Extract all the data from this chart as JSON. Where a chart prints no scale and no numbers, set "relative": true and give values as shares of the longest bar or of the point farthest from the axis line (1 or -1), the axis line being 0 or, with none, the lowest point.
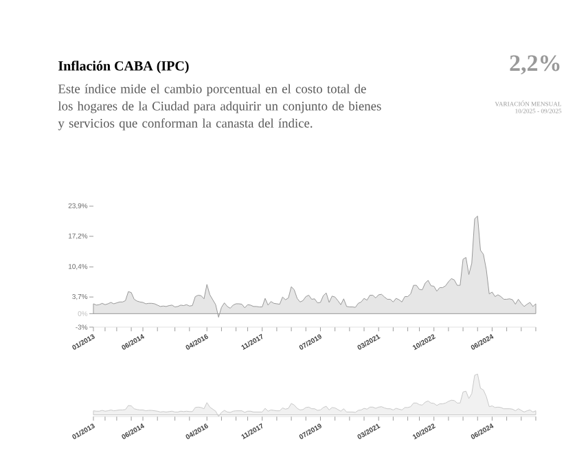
{
  "chart_data": [
    {
      "type": "area",
      "title": "Inflación CABA (IPC)",
      "subtitle": "Este índice mide el cambio porcentual en el costo total de los hogares de la Ciudad para adquirir un conjunto de bienes y servicios que conforman la canasta del índice.",
      "annotations": [
        "2,2%",
        "VARIACIÓN MENSUAL",
        "10/2025 - 09/2025"
      ],
      "color": "#999999",
      "x": [
        "2013-01",
        "2013-02",
        "2013-03",
        "2013-04",
        "2013-05",
        "2013-06",
        "2013-07",
        "2013-08",
        "2013-09",
        "2013-10",
        "2013-11",
        "2013-12",
        "2014-01",
        "2014-02",
        "2014-03",
        "2014-04",
        "2014-05",
        "2014-06",
        "2014-07",
        "2014-08",
        "2014-09",
        "2014-10",
        "2014-11",
        "2014-12",
        "2015-01",
        "2015-02",
        "2015-03",
        "2015-04",
        "2015-05",
        "2015-06",
        "2015-07",
        "2015-08",
        "2015-09",
        "2015-10",
        "2015-11",
        "2015-12",
        "2016-01",
        "2016-02",
        "2016-03",
        "2016-04",
        "2016-05",
        "2016-06",
        "2016-07",
        "2016-08",
        "2016-09",
        "2016-10",
        "2016-11",
        "2016-12",
        "2017-01",
        "2017-02",
        "2017-03",
        "2017-04",
        "2017-05",
        "2017-06",
        "2017-07",
        "2017-08",
        "2017-09",
        "2017-10",
        "2017-11",
        "2017-12",
        "2018-01",
        "2018-02",
        "2018-03",
        "2018-04",
        "2018-05",
        "2018-06",
        "2018-07",
        "2018-08",
        "2018-09",
        "2018-10",
        "2018-11",
        "2018-12",
        "2019-01",
        "2019-02",
        "2019-03",
        "2019-04",
        "2019-05",
        "2019-06",
        "2019-07",
        "2019-08",
        "2019-09",
        "2019-10",
        "2019-11",
        "2019-12",
        "2020-01",
        "2020-02",
        "2020-03",
        "2020-04",
        "2020-05",
        "2020-06",
        "2020-07",
        "2020-08",
        "2020-09",
        "2020-10",
        "2020-11",
        "2020-12",
        "2021-01",
        "2021-02",
        "2021-03",
        "2021-04",
        "2021-05",
        "2021-06",
        "2021-07",
        "2021-08",
        "2021-09",
        "2021-10",
        "2021-11",
        "2021-12",
        "2022-01",
        "2022-02",
        "2022-03",
        "2022-04",
        "2022-05",
        "2022-06",
        "2022-07",
        "2022-08",
        "2022-09",
        "2022-10",
        "2022-11",
        "2022-12",
        "2023-01",
        "2023-02",
        "2023-03",
        "2023-04",
        "2023-05",
        "2023-06",
        "2023-07",
        "2023-08",
        "2023-09",
        "2023-10",
        "2023-11",
        "2023-12",
        "2024-01",
        "2024-02",
        "2024-03",
        "2024-04",
        "2024-05",
        "2024-06",
        "2024-07",
        "2024-08",
        "2024-09",
        "2024-10",
        "2024-11",
        "2024-12",
        "2025-01",
        "2025-02",
        "2025-03",
        "2025-04",
        "2025-05",
        "2025-06",
        "2025-07",
        "2025-08",
        "2025-09"
      ],
      "values": [
        2.2,
        1.9,
        2.0,
        2.3,
        2.0,
        2.2,
        2.5,
        2.2,
        2.4,
        2.6,
        2.6,
        2.9,
        4.9,
        4.7,
        3.2,
        2.8,
        2.6,
        2.5,
        2.2,
        2.3,
        2.3,
        2.2,
        1.9,
        1.6,
        1.7,
        1.6,
        1.8,
        1.9,
        1.5,
        1.6,
        1.9,
        1.8,
        2.0,
        1.7,
        1.8,
        3.8,
        4.1,
        4.0,
        3.3,
        6.5,
        4.2,
        3.1,
        2.0,
        -0.8,
        1.4,
        2.4,
        1.6,
        1.2,
        1.9,
        2.2,
        2.2,
        2.1,
        1.3,
        2.0,
        1.9,
        1.6,
        1.6,
        1.5,
        1.5,
        3.4,
        1.9,
        2.7,
        2.3,
        2.2,
        2.1,
        3.7,
        3.1,
        3.5,
        6.0,
        5.3,
        3.4,
        2.6,
        2.9,
        3.8,
        4.1,
        3.2,
        3.3,
        2.4,
        2.5,
        4.0,
        4.6,
        2.5,
        3.9,
        3.7,
        2.9,
        2.0,
        3.3,
        1.6,
        1.5,
        1.5,
        1.4,
        2.3,
        2.6,
        3.4,
        3.0,
        4.1,
        4.1,
        3.5,
        4.2,
        4.3,
        3.7,
        3.2,
        3.2,
        2.6,
        3.4,
        3.1,
        2.6,
        3.8,
        3.8,
        4.4,
        6.3,
        6.3,
        5.4,
        5.3,
        6.8,
        7.4,
        6.2,
        6.1,
        5.0,
        5.8,
        5.8,
        6.2,
        7.1,
        7.8,
        7.5,
        6.3,
        6.3,
        12.1,
        12.5,
        8.7,
        11.2,
        21.1,
        21.7,
        14.1,
        13.2,
        9.8,
        4.4,
        4.8,
        3.8,
        4.2,
        3.8,
        3.2,
        3.2,
        3.3,
        3.1,
        2.1,
        3.2,
        2.3,
        1.6,
        2.1,
        2.5,
        1.6,
        2.2
      ],
      "xlim": [
        "2013-01",
        "2025-09"
      ],
      "ylim": [
        -3,
        23.9
      ],
      "yticks": [
        {
          "value": -3,
          "label": "-3%"
        },
        {
          "value": 0,
          "label": "0%"
        },
        {
          "value": 3.7,
          "label": "3,7%"
        },
        {
          "value": 10.4,
          "label": "10,4%"
        },
        {
          "value": 17.2,
          "label": "17,2%"
        },
        {
          "value": 23.9,
          "label": "23,9%"
        }
      ],
      "xticks": [
        {
          "value": "2013-01",
          "label": "01/2013"
        },
        {
          "value": "2013-05",
          "label": null
        },
        {
          "value": "2013-09",
          "label": null
        },
        {
          "value": "2014-02",
          "label": null
        },
        {
          "value": "2014-06",
          "label": "06/2014"
        },
        {
          "value": "2014-11",
          "label": null
        },
        {
          "value": "2015-05",
          "label": null
        },
        {
          "value": "2015-10",
          "label": null
        },
        {
          "value": "2016-04",
          "label": "04/2016"
        },
        {
          "value": "2016-09",
          "label": null
        },
        {
          "value": "2017-02",
          "label": null
        },
        {
          "value": "2017-06",
          "label": null
        },
        {
          "value": "2017-11",
          "label": "11/2017"
        },
        {
          "value": "2018-04",
          "label": null
        },
        {
          "value": "2018-09",
          "label": null
        },
        {
          "value": "2019-02",
          "label": null
        },
        {
          "value": "2019-07",
          "label": "07/2019"
        },
        {
          "value": "2019-12",
          "label": null
        },
        {
          "value": "2020-05",
          "label": null
        },
        {
          "value": "2020-10",
          "label": null
        },
        {
          "value": "2021-03",
          "label": "03/2021"
        },
        {
          "value": "2021-08",
          "label": null
        },
        {
          "value": "2022-01",
          "label": null
        },
        {
          "value": "2022-05",
          "label": null
        },
        {
          "value": "2022-10",
          "label": "10/2022"
        },
        {
          "value": "2023-03",
          "label": null
        },
        {
          "value": "2023-08",
          "label": null
        },
        {
          "value": "2024-01",
          "label": null
        },
        {
          "value": "2024-06",
          "label": "06/2024"
        },
        {
          "value": "2024-11",
          "label": null
        },
        {
          "value": "2025-04",
          "label": null
        },
        {
          "value": "2025-09",
          "label": null
        }
      ]
    },
    {
      "type": "area",
      "color": "#c8c8c8",
      "relative": true,
      "x": [
        "2013-01",
        "2013-02",
        "2013-03",
        "2013-04",
        "2013-05",
        "2013-06",
        "2013-07",
        "2013-08",
        "2013-09",
        "2013-10",
        "2013-11",
        "2013-12",
        "2014-01",
        "2014-02",
        "2014-03",
        "2014-04",
        "2014-05",
        "2014-06",
        "2014-07",
        "2014-08",
        "2014-09",
        "2014-10",
        "2014-11",
        "2014-12",
        "2015-01",
        "2015-02",
        "2015-03",
        "2015-04",
        "2015-05",
        "2015-06",
        "2015-07",
        "2015-08",
        "2015-09",
        "2015-10",
        "2015-11",
        "2015-12",
        "2016-01",
        "2016-02",
        "2016-03",
        "2016-04",
        "2016-05",
        "2016-06",
        "2016-07",
        "2016-08",
        "2016-09",
        "2016-10",
        "2016-11",
        "2016-12",
        "2017-01",
        "2017-02",
        "2017-03",
        "2017-04",
        "2017-05",
        "2017-06",
        "2017-07",
        "2017-08",
        "2017-09",
        "2017-10",
        "2017-11",
        "2017-12",
        "2018-01",
        "2018-02",
        "2018-03",
        "2018-04",
        "2018-05",
        "2018-06",
        "2018-07",
        "2018-08",
        "2018-09",
        "2018-10",
        "2018-11",
        "2018-12",
        "2019-01",
        "2019-02",
        "2019-03",
        "2019-04",
        "2019-05",
        "2019-06",
        "2019-07",
        "2019-08",
        "2019-09",
        "2019-10",
        "2019-11",
        "2019-12",
        "2020-01",
        "2020-02",
        "2020-03",
        "2020-04",
        "2020-05",
        "2020-06",
        "2020-07",
        "2020-08",
        "2020-09",
        "2020-10",
        "2020-11",
        "2020-12",
        "2021-01",
        "2021-02",
        "2021-03",
        "2021-04",
        "2021-05",
        "2021-06",
        "2021-07",
        "2021-08",
        "2021-09",
        "2021-10",
        "2021-11",
        "2021-12",
        "2022-01",
        "2022-02",
        "2022-03",
        "2022-04",
        "2022-05",
        "2022-06",
        "2022-07",
        "2022-08",
        "2022-09",
        "2022-10",
        "2022-11",
        "2022-12",
        "2023-01",
        "2023-02",
        "2023-03",
        "2023-04",
        "2023-05",
        "2023-06",
        "2023-07",
        "2023-08",
        "2023-09",
        "2023-10",
        "2023-11",
        "2023-12",
        "2024-01",
        "2024-02",
        "2024-03",
        "2024-04",
        "2024-05",
        "2024-06",
        "2024-07",
        "2024-08",
        "2024-09",
        "2024-10",
        "2024-11",
        "2024-12",
        "2025-01",
        "2025-02",
        "2025-03",
        "2025-04",
        "2025-05",
        "2025-06",
        "2025-07",
        "2025-08",
        "2025-09"
      ],
      "values": [
        0.1,
        0.09,
        0.09,
        0.11,
        0.09,
        0.1,
        0.12,
        0.1,
        0.11,
        0.12,
        0.12,
        0.13,
        0.23,
        0.22,
        0.15,
        0.13,
        0.12,
        0.12,
        0.1,
        0.11,
        0.11,
        0.1,
        0.09,
        0.07,
        0.08,
        0.07,
        0.08,
        0.09,
        0.07,
        0.07,
        0.09,
        0.08,
        0.09,
        0.08,
        0.08,
        0.18,
        0.19,
        0.18,
        0.15,
        0.3,
        0.19,
        0.14,
        0.09,
        -0.04,
        0.06,
        0.11,
        0.07,
        0.06,
        0.09,
        0.1,
        0.1,
        0.1,
        0.06,
        0.09,
        0.09,
        0.07,
        0.07,
        0.07,
        0.07,
        0.16,
        0.09,
        0.12,
        0.11,
        0.1,
        0.1,
        0.17,
        0.14,
        0.16,
        0.28,
        0.24,
        0.16,
        0.12,
        0.13,
        0.18,
        0.19,
        0.15,
        0.15,
        0.11,
        0.12,
        0.18,
        0.21,
        0.12,
        0.18,
        0.17,
        0.13,
        0.09,
        0.15,
        0.07,
        0.07,
        0.07,
        0.06,
        0.11,
        0.12,
        0.16,
        0.14,
        0.19,
        0.19,
        0.16,
        0.19,
        0.2,
        0.17,
        0.15,
        0.15,
        0.12,
        0.16,
        0.14,
        0.12,
        0.18,
        0.18,
        0.2,
        0.29,
        0.29,
        0.25,
        0.24,
        0.31,
        0.34,
        0.29,
        0.28,
        0.23,
        0.27,
        0.27,
        0.29,
        0.33,
        0.36,
        0.35,
        0.29,
        0.29,
        0.56,
        0.58,
        0.4,
        0.52,
        0.97,
        1,
        0.65,
        0.61,
        0.45,
        0.2,
        0.22,
        0.18,
        0.19,
        0.18,
        0.15,
        0.15,
        0.15,
        0.14,
        0.1,
        0.15,
        0.11,
        0.07,
        0.1,
        0.12,
        0.07,
        0.1
      ],
      "xlim": [
        "2013-01",
        "2025-09"
      ],
      "xticks": [
        {
          "value": "2013-01",
          "label": "01/2013"
        },
        {
          "value": "2013-05",
          "label": null
        },
        {
          "value": "2013-09",
          "label": null
        },
        {
          "value": "2014-02",
          "label": null
        },
        {
          "value": "2014-06",
          "label": "06/2014"
        },
        {
          "value": "2014-11",
          "label": null
        },
        {
          "value": "2015-05",
          "label": null
        },
        {
          "value": "2015-10",
          "label": null
        },
        {
          "value": "2016-04",
          "label": "04/2016"
        },
        {
          "value": "2016-09",
          "label": null
        },
        {
          "value": "2017-02",
          "label": null
        },
        {
          "value": "2017-06",
          "label": null
        },
        {
          "value": "2017-11",
          "label": "11/2017"
        },
        {
          "value": "2018-04",
          "label": null
        },
        {
          "value": "2018-09",
          "label": null
        },
        {
          "value": "2019-02",
          "label": null
        },
        {
          "value": "2019-07",
          "label": "07/2019"
        },
        {
          "value": "2019-12",
          "label": null
        },
        {
          "value": "2020-05",
          "label": null
        },
        {
          "value": "2020-10",
          "label": null
        },
        {
          "value": "2021-03",
          "label": "03/2021"
        },
        {
          "value": "2021-08",
          "label": null
        },
        {
          "value": "2022-01",
          "label": null
        },
        {
          "value": "2022-05",
          "label": null
        },
        {
          "value": "2022-10",
          "label": "10/2022"
        },
        {
          "value": "2023-03",
          "label": null
        },
        {
          "value": "2023-08",
          "label": null
        },
        {
          "value": "2024-01",
          "label": null
        },
        {
          "value": "2024-06",
          "label": "06/2024"
        },
        {
          "value": "2024-11",
          "label": null
        },
        {
          "value": "2025-04",
          "label": null
        },
        {
          "value": "2025-09",
          "label": null
        }
      ]
    }
  ]
}
